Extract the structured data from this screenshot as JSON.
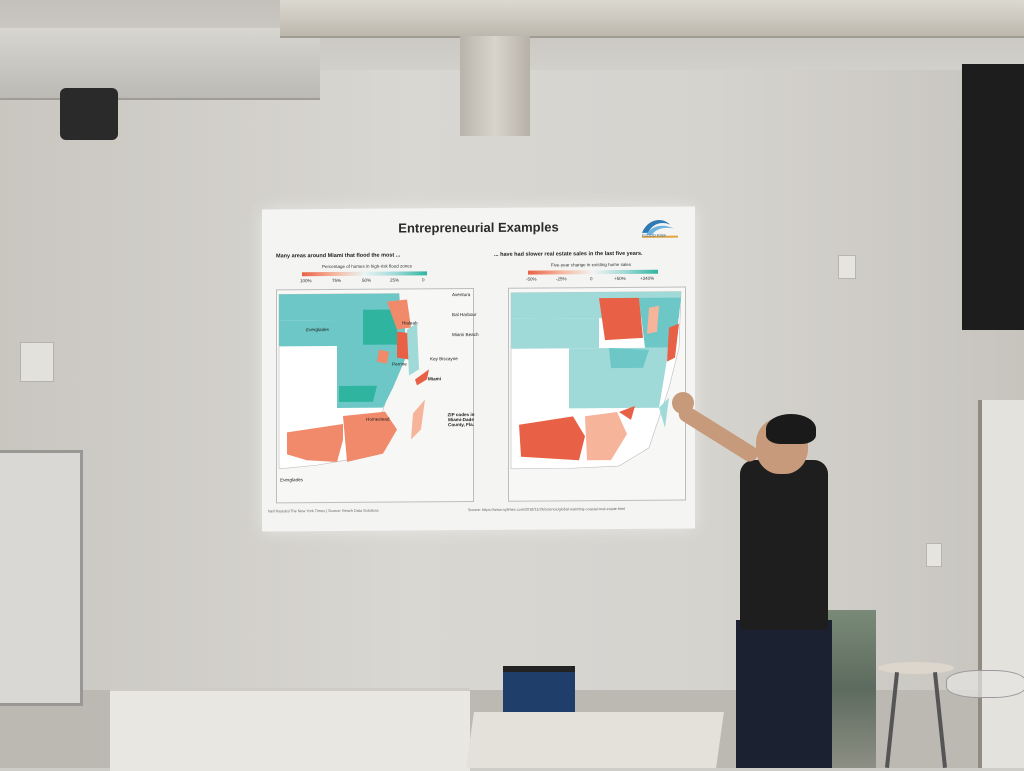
{
  "slide": {
    "title": "Entrepreneurial Examples",
    "logo_text": "FLOOD RISK",
    "left_panel": {
      "heading": "Many areas around Miami that flood the most ...",
      "legend_title": "Percentage of homes in high-risk flood zones",
      "legend_ticks": [
        "100%",
        "75%",
        "50%",
        "25%",
        "0"
      ],
      "map_labels": {
        "aventura": "Aventura",
        "bal_harbour": "Bal Harbour",
        "hialeah": "Hialeah",
        "miami_beach": "Miami Beach",
        "everglades_top": "Everglades",
        "key_biscayne": "Key Biscayne",
        "perrine": "Perrine",
        "miami": "Miami",
        "homestead": "Homestead",
        "zip_note": "ZIP codes in Miami-Dade County, Fla.",
        "everglades_bottom": "Everglades"
      },
      "footer": "Nell Hasiotis/The New York Times | Source: Beach Data Solutions"
    },
    "right_panel": {
      "heading": "... have had slower real estate sales in the last five years.",
      "legend_title": "Five-year change in existing home sales",
      "legend_ticks": [
        "-50%",
        "-25%",
        "0",
        "+50%",
        "+340%"
      ],
      "footer": "Source: https://www.nytimes.com/2018/11/26/science/global-warming-coastal-real-estate.html"
    },
    "colors": {
      "teal_high": "#2fb59f",
      "teal": "#6cc7c6",
      "light_teal": "#9fd9d8",
      "salmon": "#f08a6a",
      "coral": "#e86146",
      "pale_salmon": "#f6b49b",
      "slide_bg": "#f4f4f3"
    }
  }
}
